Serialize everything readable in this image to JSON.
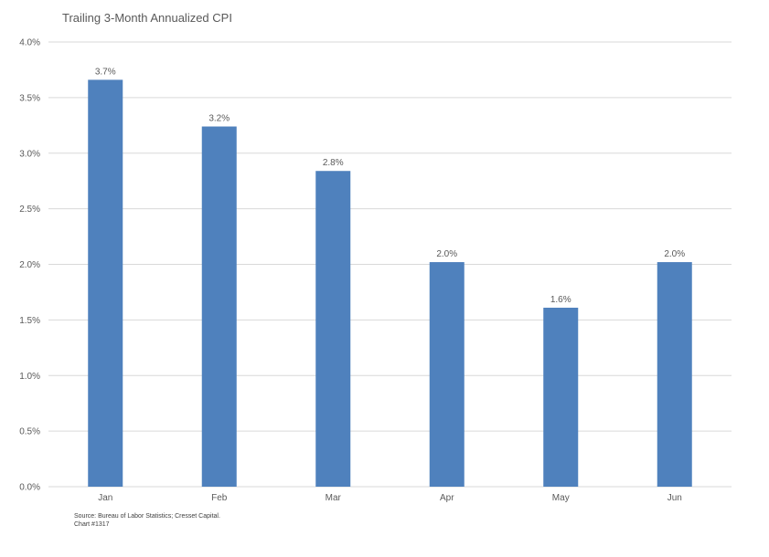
{
  "chart_data": {
    "type": "bar",
    "title": "Trailing 3-Month Annualized CPI",
    "categories": [
      "Jan",
      "Feb",
      "Mar",
      "Apr",
      "May",
      "Jun"
    ],
    "values": [
      3.66,
      3.24,
      2.84,
      2.02,
      1.61,
      2.02
    ],
    "data_labels": [
      "3.7%",
      "3.2%",
      "2.8%",
      "2.0%",
      "1.6%",
      "2.0%"
    ],
    "ylim": [
      0,
      4.0
    ],
    "yticks": [
      0,
      0.5,
      1.0,
      1.5,
      2.0,
      2.5,
      3.0,
      3.5,
      4.0
    ],
    "ytick_labels": [
      "0.0%",
      "0.5%",
      "1.0%",
      "1.5%",
      "2.0%",
      "2.5%",
      "3.0%",
      "3.5%",
      "4.0%"
    ],
    "xlabel": "",
    "ylabel": "",
    "grid": true,
    "legend": "none",
    "bar_color": "#4F81BD",
    "grid_color": "#D9D9D9"
  },
  "footnote": {
    "source": "Source: Bureau of Labor Statistics; Cresset Capital.",
    "chart_number": "Chart #1317"
  }
}
